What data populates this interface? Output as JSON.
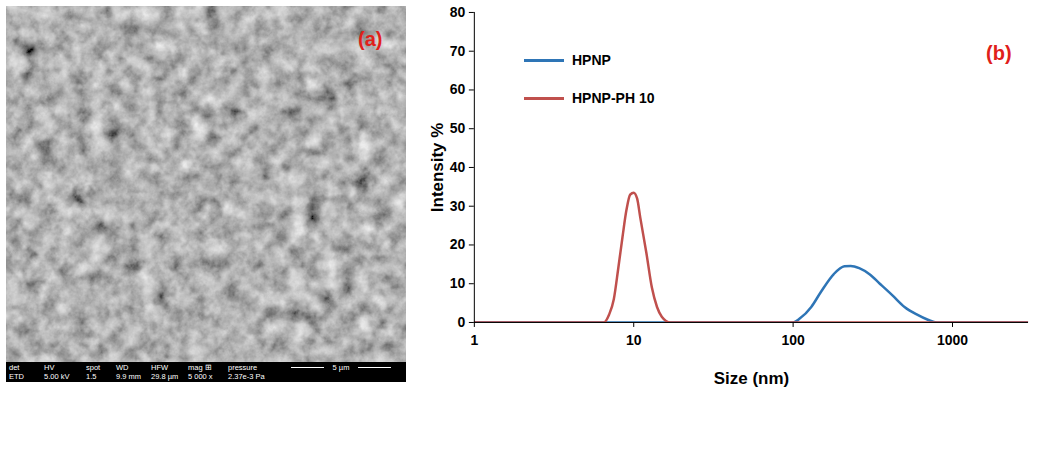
{
  "image_panel": {
    "panel_label": "(a)",
    "info_bar": {
      "headers": [
        "det",
        "HV",
        "spot",
        "WD",
        "HFW",
        "mag ⊞",
        "pressure"
      ],
      "values": [
        "ETD",
        "5.00 kV",
        "1.5",
        "9.9 mm",
        "29.8 µm",
        "5 000 x",
        "2.37e-3 Pa"
      ],
      "scale_bar": "5 µm"
    }
  },
  "chart_data": {
    "type": "line",
    "panel_label": "(b)",
    "x_label": "Size (nm)",
    "y_label": "Intensity %",
    "log": "x",
    "grid": false,
    "legend": "upper left",
    "xlim": [
      1,
      3000
    ],
    "xticks": [
      1,
      10,
      100,
      1000
    ],
    "ylim": [
      0,
      80
    ],
    "yticks": [
      0,
      10,
      20,
      30,
      40,
      50,
      60,
      70,
      80
    ],
    "series": [
      {
        "name": "HPNP",
        "color": "#2e75b6",
        "x": [
          1,
          100,
          110,
          130,
          150,
          180,
          210,
          230,
          260,
          300,
          350,
          420,
          500,
          600,
          700,
          800,
          3000
        ],
        "values": [
          0,
          0,
          1,
          4,
          8,
          12.5,
          14.5,
          14.6,
          14,
          12.5,
          10,
          7,
          4,
          2,
          0.7,
          0,
          0
        ]
      },
      {
        "name": "HPNP-PH 10",
        "color": "#c0504d",
        "x": [
          1,
          6.5,
          7,
          7.5,
          8,
          8.5,
          9,
          9.5,
          10,
          10.5,
          11,
          12,
          13,
          14,
          15,
          17,
          3000
        ],
        "values": [
          0,
          0,
          2,
          6,
          14,
          22,
          29,
          33,
          33.5,
          32,
          27,
          18,
          9,
          4,
          1.5,
          0,
          0
        ]
      }
    ]
  }
}
